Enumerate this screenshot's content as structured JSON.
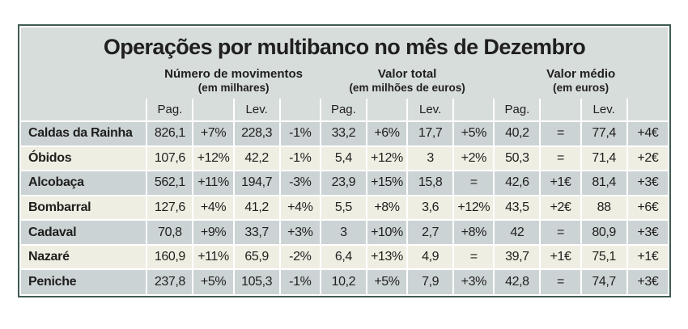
{
  "chart_data": {
    "type": "table",
    "title": "Operações por multibanco no mês de Dezembro",
    "groups": [
      {
        "label": "Número de movimentos",
        "sublabel": "(em milhares)",
        "columns": [
          "Pag.",
          "Lev."
        ]
      },
      {
        "label": "Valor total",
        "sublabel": "(em milhões de euros)",
        "columns": [
          "Pag.",
          "Lev."
        ]
      },
      {
        "label": "Valor médio",
        "sublabel": "(em euros)",
        "columns": [
          "Pag.",
          "Lev."
        ]
      }
    ],
    "subheader_cells": [
      "Pag.",
      "",
      "Lev.",
      "",
      "Pag.",
      "",
      "Lev.",
      "",
      "Pag.",
      "",
      "Lev.",
      ""
    ],
    "rows": [
      {
        "name": "Caldas da Rainha",
        "cells": [
          "826,1",
          "+7%",
          "228,3",
          "-1%",
          "33,2",
          "+6%",
          "17,7",
          "+5%",
          "40,2",
          "=",
          "77,4",
          "+4€"
        ]
      },
      {
        "name": "Óbidos",
        "cells": [
          "107,6",
          "+12%",
          "42,2",
          "-1%",
          "5,4",
          "+12%",
          "3",
          "+2%",
          "50,3",
          "=",
          "71,4",
          "+2€"
        ]
      },
      {
        "name": "Alcobaça",
        "cells": [
          "562,1",
          "+11%",
          "194,7",
          "-3%",
          "23,9",
          "+15%",
          "15,8",
          "=",
          "42,6",
          "+1€",
          "81,4",
          "+3€"
        ]
      },
      {
        "name": "Bombarral",
        "cells": [
          "127,6",
          "+4%",
          "41,2",
          "+4%",
          "5,5",
          "+8%",
          "3,6",
          "+12%",
          "43,5",
          "+2€",
          "88",
          "+6€"
        ]
      },
      {
        "name": "Cadaval",
        "cells": [
          "70,8",
          "+9%",
          "33,7",
          "+3%",
          "3",
          "+10%",
          "2,7",
          "+8%",
          "42",
          "=",
          "80,9",
          "+3€"
        ]
      },
      {
        "name": "Nazaré",
        "cells": [
          "160,9",
          "+11%",
          "65,9",
          "-2%",
          "6,4",
          "+13%",
          "4,9",
          "=",
          "39,7",
          "+1€",
          "75,1",
          "+1€"
        ]
      },
      {
        "name": "Peniche",
        "cells": [
          "237,8",
          "+5%",
          "105,3",
          "-1%",
          "10,2",
          "+5%",
          "7,9",
          "+3%",
          "42,8",
          "=",
          "74,7",
          "+3€"
        ]
      }
    ]
  },
  "colors": {
    "frame": "#3f5c54",
    "header_bg": "#d7dddb",
    "row_gray": "#ccd3d5",
    "row_cream": "#efeee3",
    "separator": "#ffffff",
    "text": "#1f1f1d"
  }
}
